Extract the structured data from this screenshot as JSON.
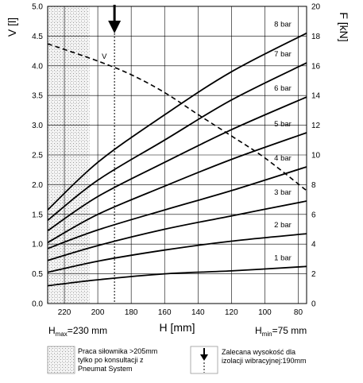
{
  "chart_data": {
    "type": "line",
    "xlabel": "H [mm]",
    "ylabel_left": "V [l]",
    "ylabel_right": "F [kN]",
    "x_reversed": true,
    "xlim": [
      230,
      75
    ],
    "xticks": [
      220,
      200,
      180,
      160,
      140,
      120,
      100,
      80
    ],
    "ylim_left": [
      0,
      5.0
    ],
    "yticks_left": [
      "0.0",
      "0.5",
      "1.0",
      "1.5",
      "2.0",
      "2.5",
      "3.0",
      "3.5",
      "4.0",
      "4.5",
      "5.0"
    ],
    "ylim_right": [
      0,
      20
    ],
    "yticks_right": [
      "0",
      "2",
      "4",
      "6",
      "8",
      "10",
      "12",
      "14",
      "16",
      "18",
      "20"
    ],
    "grid": true,
    "series": [
      {
        "name": "1 bar",
        "axis": "F",
        "x": [
          230,
          200,
          160,
          120,
          75
        ],
        "y": [
          1.2,
          1.6,
          2.0,
          2.2,
          2.5
        ]
      },
      {
        "name": "2 bar",
        "axis": "F",
        "x": [
          230,
          200,
          160,
          120,
          75
        ],
        "y": [
          2.1,
          2.85,
          3.6,
          4.2,
          4.7
        ]
      },
      {
        "name": "3 bar",
        "axis": "F",
        "x": [
          230,
          200,
          160,
          120,
          75
        ],
        "y": [
          2.9,
          3.9,
          5.0,
          5.9,
          6.9
        ]
      },
      {
        "name": "4 bar",
        "axis": "F",
        "x": [
          230,
          200,
          160,
          120,
          75
        ],
        "y": [
          3.7,
          4.95,
          6.3,
          7.6,
          9.2
        ]
      },
      {
        "name": "5 bar",
        "axis": "F",
        "x": [
          230,
          200,
          160,
          120,
          75
        ],
        "y": [
          4.1,
          6.0,
          7.9,
          9.7,
          11.5
        ]
      },
      {
        "name": "6 bar",
        "axis": "F",
        "x": [
          230,
          200,
          160,
          120,
          75
        ],
        "y": [
          4.9,
          7.2,
          9.5,
          11.7,
          13.9
        ]
      },
      {
        "name": "7 bar",
        "axis": "F",
        "x": [
          230,
          200,
          160,
          120,
          75
        ],
        "y": [
          5.6,
          8.3,
          11.0,
          13.7,
          16.2
        ]
      },
      {
        "name": "8 bar",
        "axis": "F",
        "x": [
          230,
          200,
          160,
          120,
          75
        ],
        "y": [
          6.3,
          9.5,
          12.7,
          15.6,
          18.2
        ]
      },
      {
        "name": "V",
        "axis": "V",
        "style": "dashed",
        "x": [
          230,
          200,
          180,
          160,
          140,
          120,
          100,
          75
        ],
        "y": [
          4.37,
          4.08,
          3.85,
          3.55,
          3.18,
          2.82,
          2.45,
          1.9
        ]
      }
    ],
    "annotations": {
      "hatched_region_x": [
        230,
        205
      ],
      "recommended_x": 190,
      "v_label": "V",
      "hmax_label": "230 mm",
      "hmin_label": "75 mm",
      "hmax_prefix": "H",
      "hmax_sub": "max",
      "hmin_prefix": "H",
      "hmin_sub": "min",
      "hmax_eq": "=",
      "hmin_eq": "="
    }
  },
  "legend": {
    "hatched_text": [
      "Praca siłownika >205mm",
      "tylko po konsultacji z",
      "Pneumat System"
    ],
    "arrow_text": [
      "Zalecana wysokość dla",
      "izolacji wibracyjnej:190mm"
    ]
  }
}
